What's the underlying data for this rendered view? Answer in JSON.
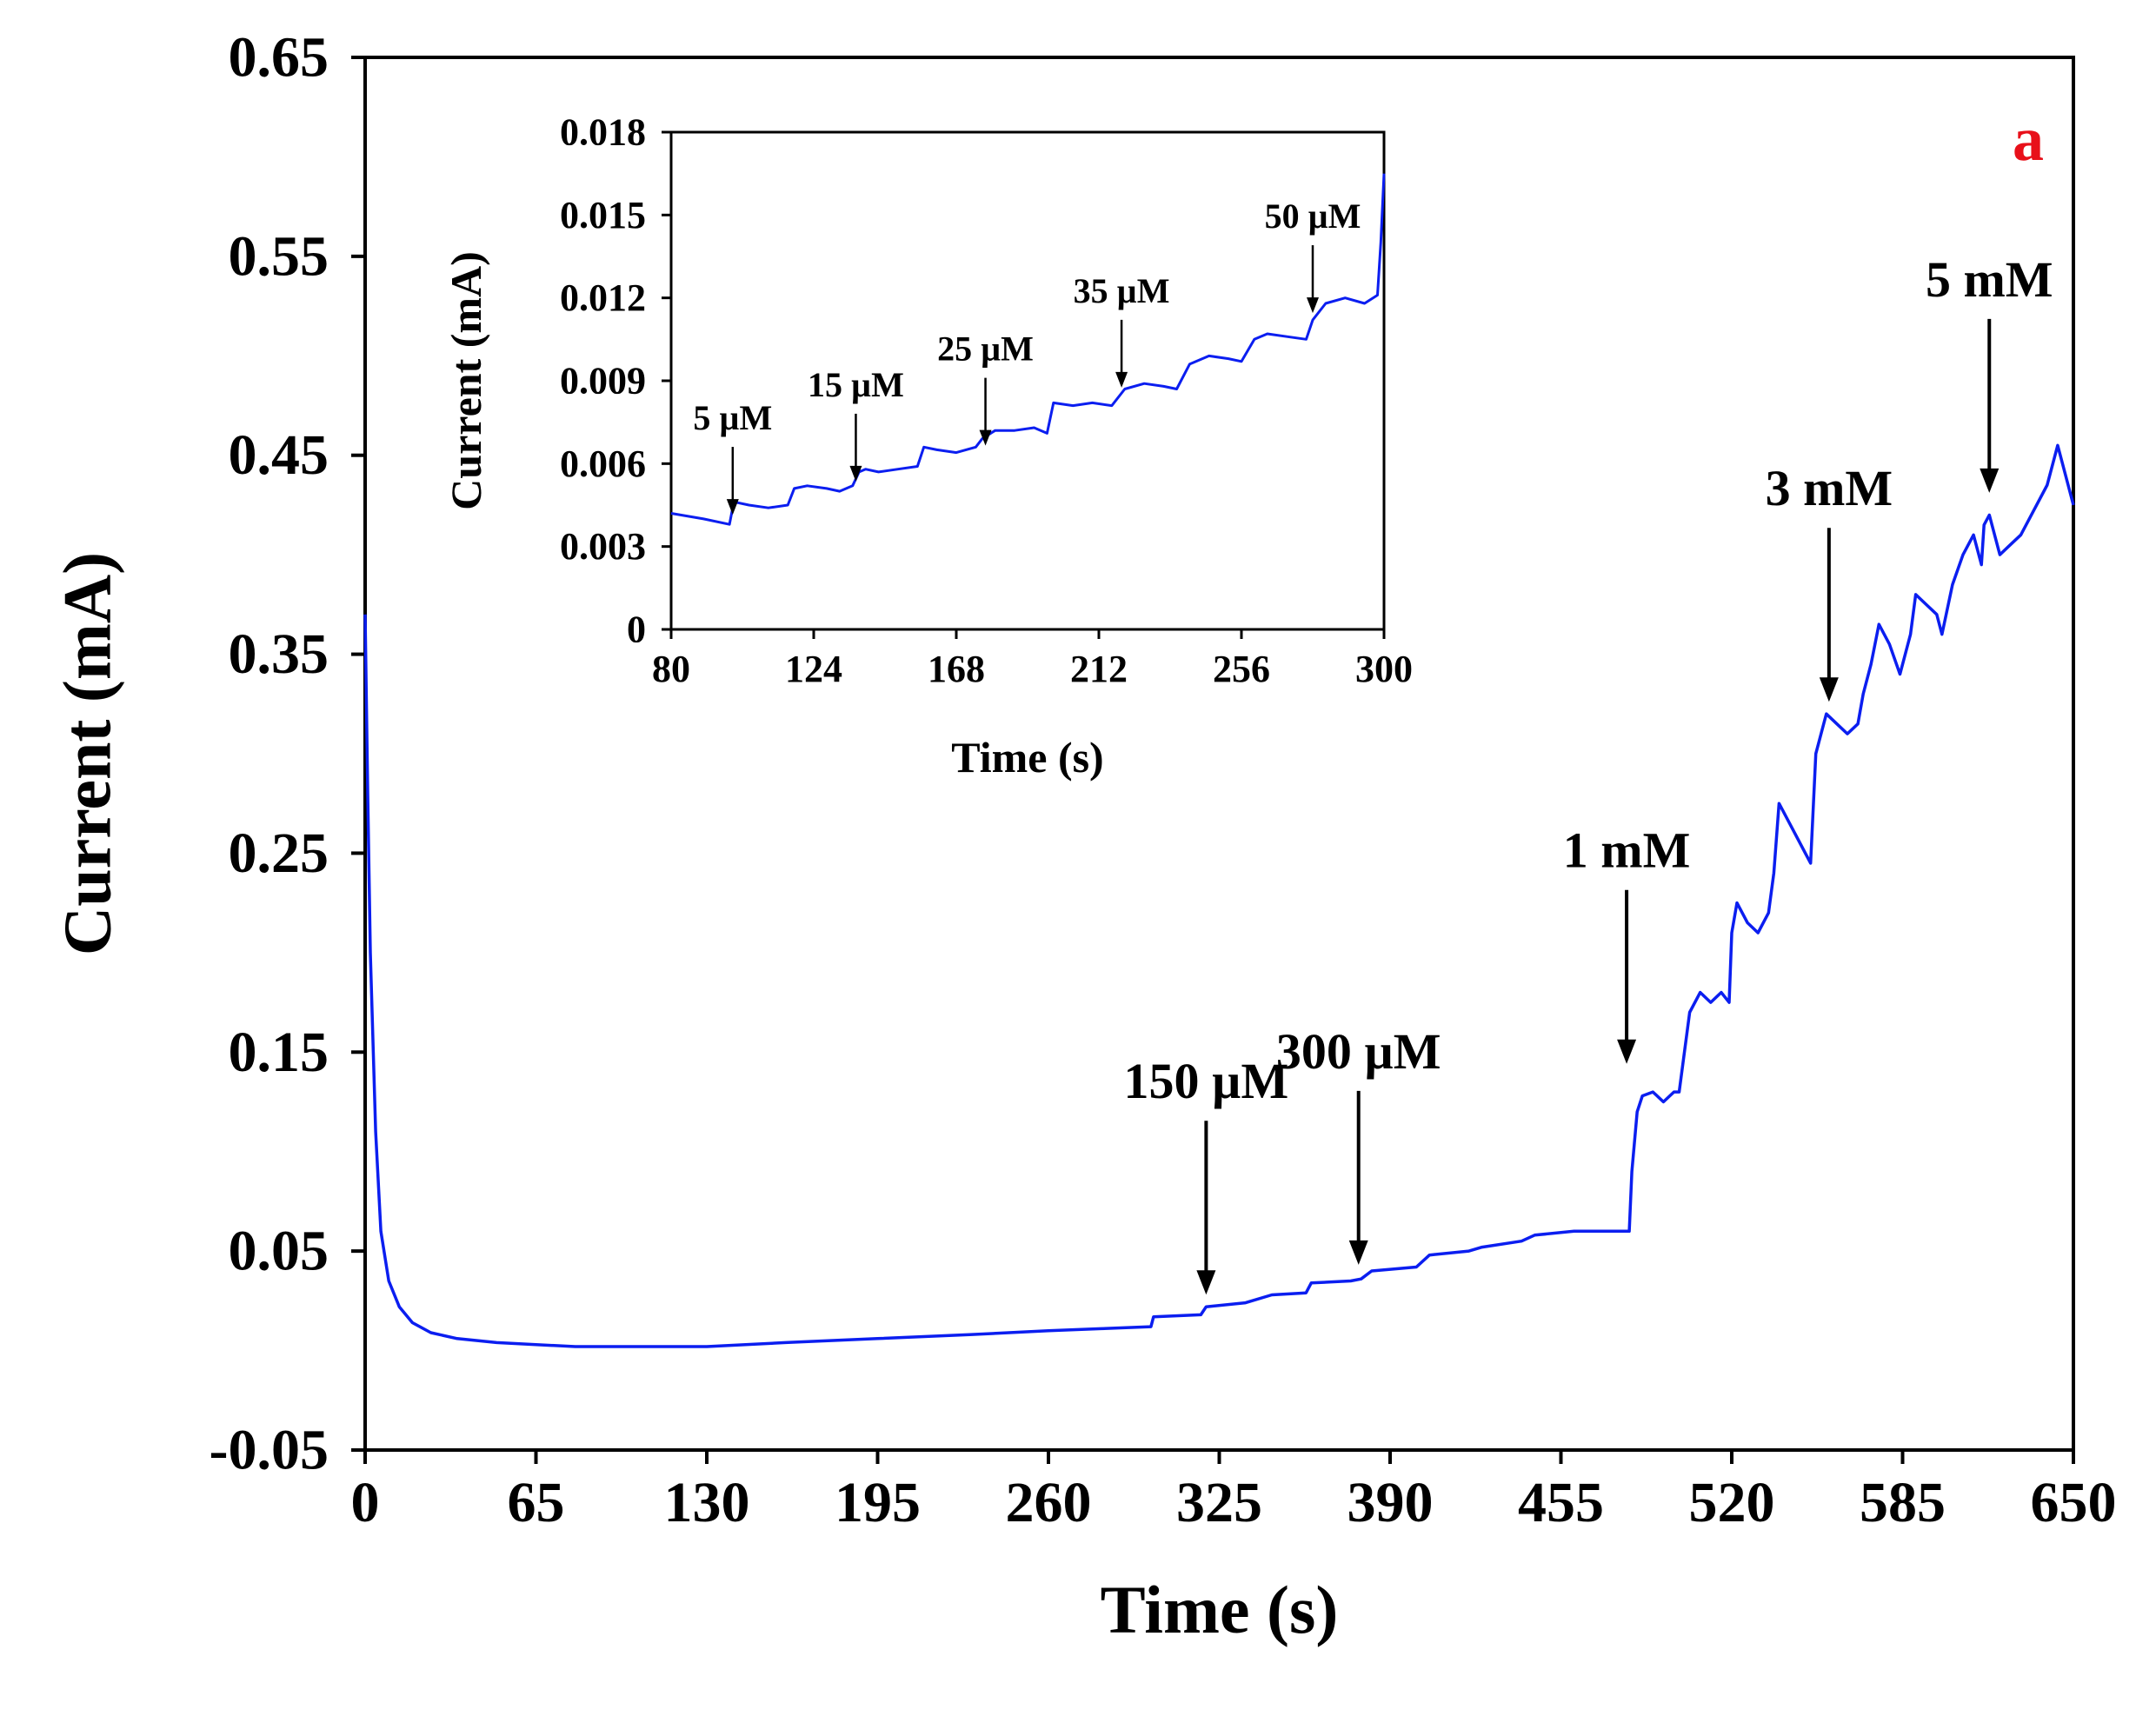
{
  "chart_data": [
    {
      "type": "line",
      "panel_label": "a",
      "xlabel": "Time (s)",
      "ylabel": "Current (mA)",
      "xlim": [
        0,
        650
      ],
      "ylim": [
        -0.05,
        0.65
      ],
      "x_ticks": [
        "0",
        "65",
        "130",
        "195",
        "260",
        "325",
        "390",
        "455",
        "520",
        "585",
        "650"
      ],
      "y_ticks": [
        "-0.05",
        "0.05",
        "0.15",
        "0.25",
        "0.35",
        "0.45",
        "0.55",
        "0.65"
      ],
      "line_color": "#0b1ef0",
      "series": [
        {
          "x": [
            0,
            1,
            2,
            4,
            6,
            9,
            13,
            18,
            25,
            35,
            50,
            65,
            80,
            100,
            130,
            160,
            195,
            230,
            260,
            280,
            299,
            300,
            318,
            320,
            335,
            345,
            358,
            360,
            375,
            379,
            383,
            400,
            405,
            420,
            425,
            440,
            445,
            460,
            470,
            481,
            482,
            484,
            486,
            490,
            494,
            498,
            500,
            504,
            508,
            512,
            516,
            519,
            520,
            522,
            526,
            530,
            534,
            536,
            538,
            542,
            546,
            550,
            552,
            556,
            560,
            564,
            568,
            570,
            573,
            576,
            580,
            584,
            588,
            590,
            594,
            598,
            600,
            604,
            608,
            612,
            615,
            616,
            618,
            622,
            626,
            630,
            634,
            640,
            644,
            650
          ],
          "y": [
            0.37,
            0.28,
            0.2,
            0.11,
            0.06,
            0.035,
            0.022,
            0.014,
            0.009,
            0.006,
            0.004,
            0.003,
            0.002,
            0.002,
            0.002,
            0.004,
            0.006,
            0.008,
            0.01,
            0.011,
            0.012,
            0.017,
            0.018,
            0.022,
            0.024,
            0.028,
            0.029,
            0.034,
            0.035,
            0.036,
            0.04,
            0.042,
            0.048,
            0.05,
            0.052,
            0.055,
            0.058,
            0.06,
            0.06,
            0.06,
            0.09,
            0.12,
            0.128,
            0.13,
            0.125,
            0.13,
            0.13,
            0.17,
            0.18,
            0.175,
            0.18,
            0.175,
            0.21,
            0.225,
            0.215,
            0.21,
            0.22,
            0.24,
            0.275,
            0.265,
            0.255,
            0.245,
            0.3,
            0.32,
            0.315,
            0.31,
            0.315,
            0.33,
            0.345,
            0.365,
            0.355,
            0.34,
            0.36,
            0.38,
            0.375,
            0.37,
            0.36,
            0.385,
            0.4,
            0.41,
            0.395,
            0.415,
            0.42,
            0.4,
            0.405,
            0.41,
            0.42,
            0.435,
            0.455,
            0.425
          ]
        }
      ],
      "annotations": [
        {
          "text": "150 µM",
          "x": 320
        },
        {
          "text": "300 µM",
          "x": 378
        },
        {
          "text": "1 mM",
          "x": 480
        },
        {
          "text": "3 mM",
          "x": 557
        },
        {
          "text": "5 mM",
          "x": 618
        }
      ]
    },
    {
      "type": "line",
      "inset": true,
      "xlabel": "Time (s)",
      "ylabel": "Current (mA)",
      "xlim": [
        80,
        300
      ],
      "ylim": [
        0,
        0.018
      ],
      "x_ticks": [
        "80",
        "124",
        "168",
        "212",
        "256",
        "300"
      ],
      "y_ticks": [
        "0",
        "0.003",
        "0.006",
        "0.009",
        "0.012",
        "0.015",
        "0.018"
      ],
      "line_color": "#0b1ef0",
      "series": [
        {
          "x": [
            80,
            90,
            98,
            99,
            100,
            104,
            110,
            116,
            118,
            122,
            128,
            132,
            136,
            138,
            140,
            144,
            150,
            156,
            158,
            162,
            168,
            174,
            176,
            180,
            186,
            192,
            196,
            198,
            204,
            210,
            216,
            220,
            226,
            232,
            236,
            240,
            246,
            252,
            256,
            260,
            264,
            270,
            276,
            278,
            282,
            288,
            294,
            298,
            299,
            300
          ],
          "y": [
            0.0042,
            0.004,
            0.0038,
            0.0044,
            0.0046,
            0.0045,
            0.0044,
            0.0045,
            0.0051,
            0.0052,
            0.0051,
            0.005,
            0.0052,
            0.0057,
            0.0058,
            0.0057,
            0.0058,
            0.0059,
            0.0066,
            0.0065,
            0.0064,
            0.0066,
            0.0069,
            0.0072,
            0.0072,
            0.0073,
            0.0071,
            0.0082,
            0.0081,
            0.0082,
            0.0081,
            0.0087,
            0.0089,
            0.0088,
            0.0087,
            0.0096,
            0.0099,
            0.0098,
            0.0097,
            0.0105,
            0.0107,
            0.0106,
            0.0105,
            0.0112,
            0.0118,
            0.012,
            0.0118,
            0.0121,
            0.014,
            0.0165
          ]
        }
      ],
      "annotations": [
        {
          "text": "5 µM",
          "x": 99
        },
        {
          "text": "15 µM",
          "x": 137
        },
        {
          "text": "25 µM",
          "x": 177
        },
        {
          "text": "35 µM",
          "x": 219
        },
        {
          "text": "50 µM",
          "x": 278
        }
      ]
    }
  ]
}
